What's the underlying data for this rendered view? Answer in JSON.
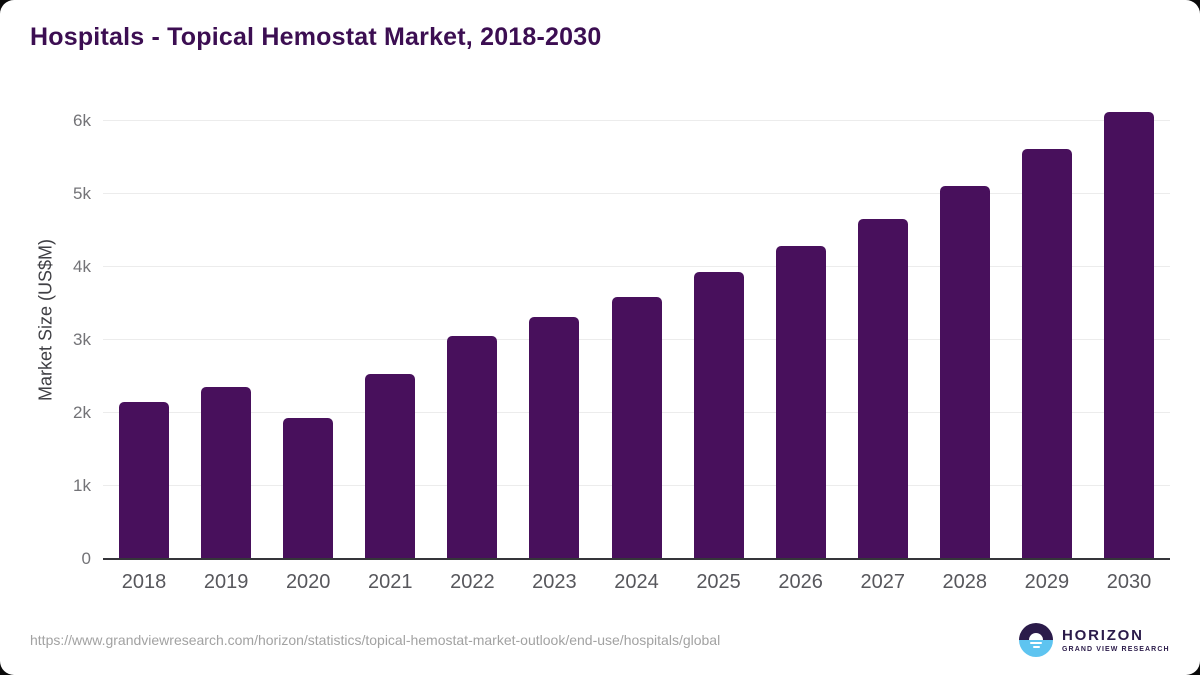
{
  "chart_data": {
    "type": "bar",
    "title": "Hospitals - Topical Hemostat Market, 2018-2030",
    "ylabel": "Market Size (US$M)",
    "xlabel": "",
    "categories": [
      "2018",
      "2019",
      "2020",
      "2021",
      "2022",
      "2023",
      "2024",
      "2025",
      "2026",
      "2027",
      "2028",
      "2029",
      "2030"
    ],
    "values": [
      2150,
      2360,
      1930,
      2540,
      3060,
      3320,
      3590,
      3930,
      4290,
      4660,
      5110,
      5610,
      6130
    ],
    "series_name": "Market Size (US$M)",
    "ylim": [
      0,
      6000
    ],
    "yticks": [
      0,
      1000,
      2000,
      3000,
      4000,
      5000,
      6000
    ],
    "ytick_labels": [
      "0",
      "1k",
      "2k",
      "3k",
      "4k",
      "5k",
      "6k"
    ],
    "grid": true,
    "legend": false,
    "colors": {
      "bar": "#48105c",
      "title": "#3c0e52",
      "gridline": "#ececec",
      "axis_line": "#35353a",
      "ytick_label": "#737377",
      "xtick_label": "#57575c",
      "axis_title": "#3f3f44"
    }
  },
  "footer": {
    "source_url": "https://www.grandviewresearch.com/horizon/statistics/topical-hemostat-market-outlook/end-use/hospitals/global",
    "logo": {
      "name": "HORIZON",
      "subtitle": "GRAND VIEW RESEARCH",
      "colors": {
        "dark": "#2b1b4a",
        "light": "#5ec4f0"
      }
    }
  }
}
